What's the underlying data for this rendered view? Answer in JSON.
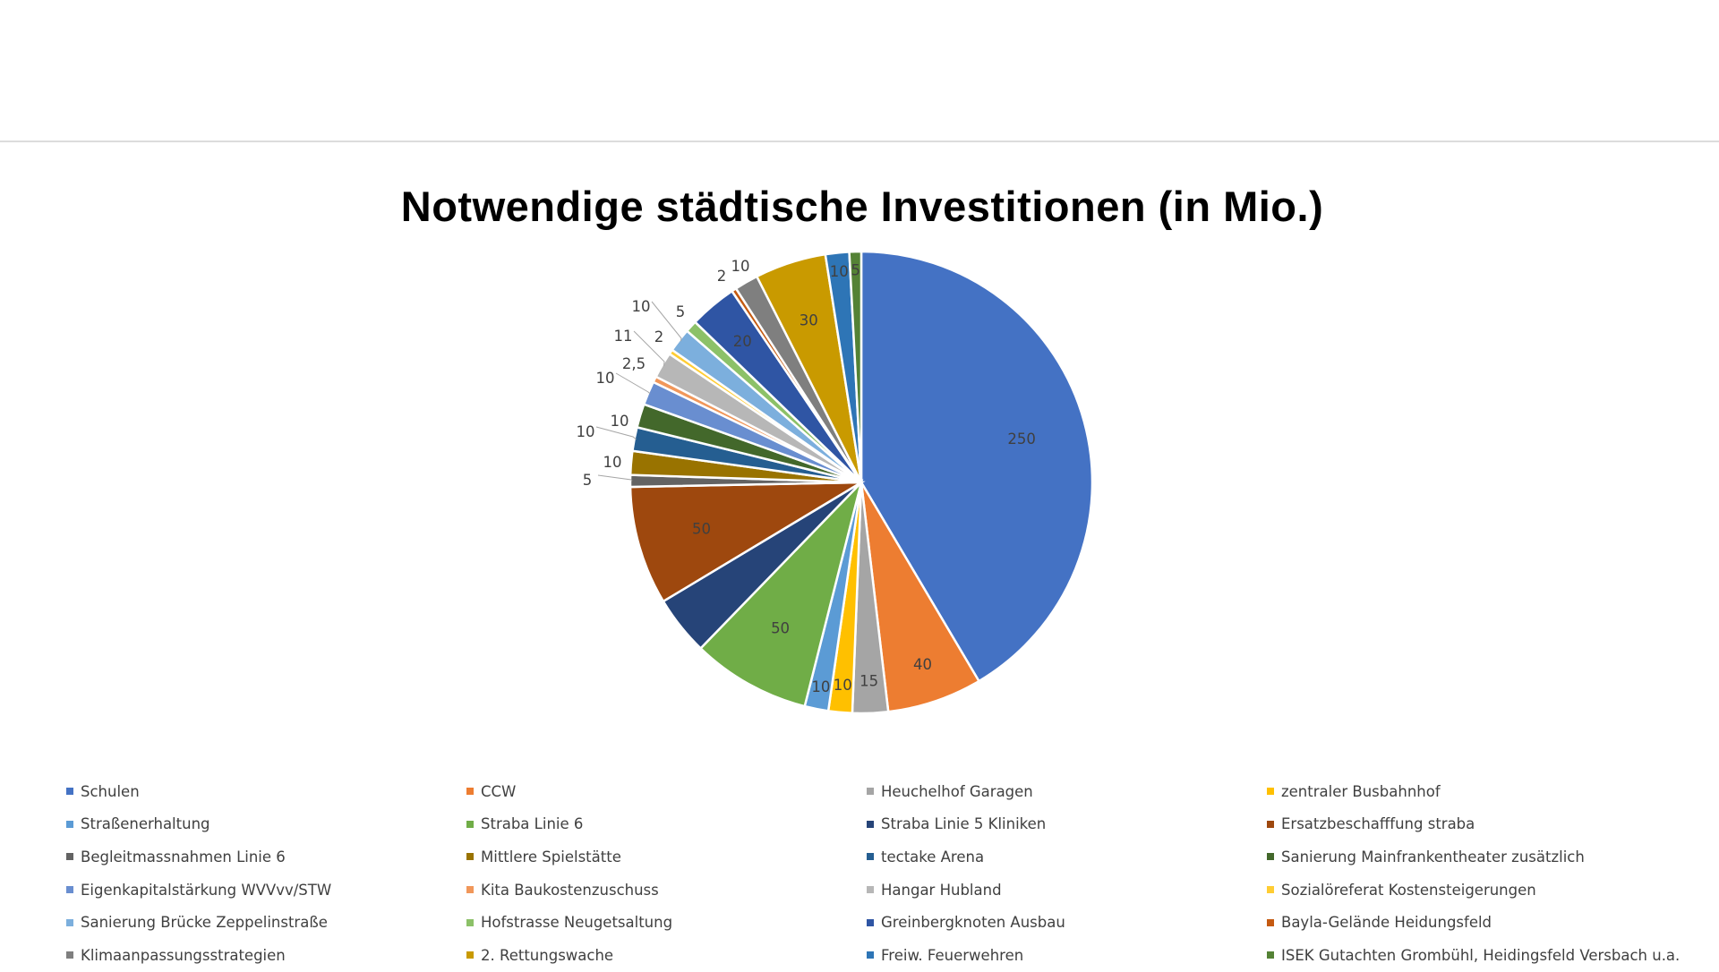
{
  "chart_data": {
    "type": "pie",
    "title": "Notwendige städtische Investitionen (in Mio.)",
    "legend_position": "bottom",
    "slices": [
      {
        "label": "Schulen",
        "value": 250,
        "value_label": "250",
        "color": "#4472C4"
      },
      {
        "label": "CCW",
        "value": 40,
        "value_label": "40",
        "color": "#ED7D31"
      },
      {
        "label": "Heuchelhof Garagen",
        "value": 15,
        "value_label": "15",
        "color": "#A5A5A5"
      },
      {
        "label": "zentraler Busbahnhof",
        "value": 10,
        "value_label": "10",
        "color": "#FFC000"
      },
      {
        "label": "Straßenerhaltung",
        "value": 10,
        "value_label": "10",
        "color": "#5B9BD5"
      },
      {
        "label": "Straba Linie 6",
        "value": 50,
        "value_label": "50",
        "color": "#70AD47"
      },
      {
        "label": "Straba Linie 5 Kliniken",
        "value": 25,
        "value_label": "",
        "color": "#264478"
      },
      {
        "label": "Ersatzbeschafffung straba",
        "value": 50,
        "value_label": "50",
        "color": "#9E480E"
      },
      {
        "label": "Begleitmassnahmen Linie 6",
        "value": 5,
        "value_label": "5",
        "color": "#636363"
      },
      {
        "label": "Mittlere Spielstätte",
        "value": 10,
        "value_label": "10",
        "color": "#997300"
      },
      {
        "label": "tectake Arena",
        "value": 10,
        "value_label": "10",
        "color": "#255E91"
      },
      {
        "label": "Sanierung Mainfrankentheater zusätzlich",
        "value": 10,
        "value_label": "10",
        "color": "#43682B"
      },
      {
        "label": "Eigenkapitalstärkung WVVvv/STW",
        "value": 10,
        "value_label": "10",
        "color": "#698ED0"
      },
      {
        "label": "Kita Baukostenzuschuss",
        "value": 2.5,
        "value_label": "2,5",
        "color": "#F1975A"
      },
      {
        "label": "Hangar Hubland",
        "value": 11,
        "value_label": "11",
        "color": "#B7B7B7"
      },
      {
        "label": "Sozialöreferat Kostensteigerungen",
        "value": 2,
        "value_label": "2",
        "color": "#FFCD33"
      },
      {
        "label": "Sanierung Brücke Zeppelinstraße",
        "value": 10,
        "value_label": "10",
        "color": "#7CAFDD"
      },
      {
        "label": "Hofstrasse Neugetsaltung",
        "value": 5,
        "value_label": "5",
        "color": "#8CC168"
      },
      {
        "label": "Greinbergknoten Ausbau",
        "value": 20,
        "value_label": "20",
        "color": "#2F55A4"
      },
      {
        "label": "Bayla-Gelände Heidungsfeld",
        "value": 2,
        "value_label": "2",
        "color": "#C55A11"
      },
      {
        "label": "Klimaanpassungsstrategien",
        "value": 10,
        "value_label": "10",
        "color": "#7F7F7F"
      },
      {
        "label": "2. Rettungswache",
        "value": 30,
        "value_label": "30",
        "color": "#C99A00"
      },
      {
        "label": "Freiw. Feuerwehren",
        "value": 10,
        "value_label": "10",
        "color": "#2E75B6"
      },
      {
        "label": "ISEK Gutachten Grombühl, Heidingsfeld Versbach u.a.",
        "value": 5,
        "value_label": "5",
        "color": "#548235"
      }
    ]
  }
}
